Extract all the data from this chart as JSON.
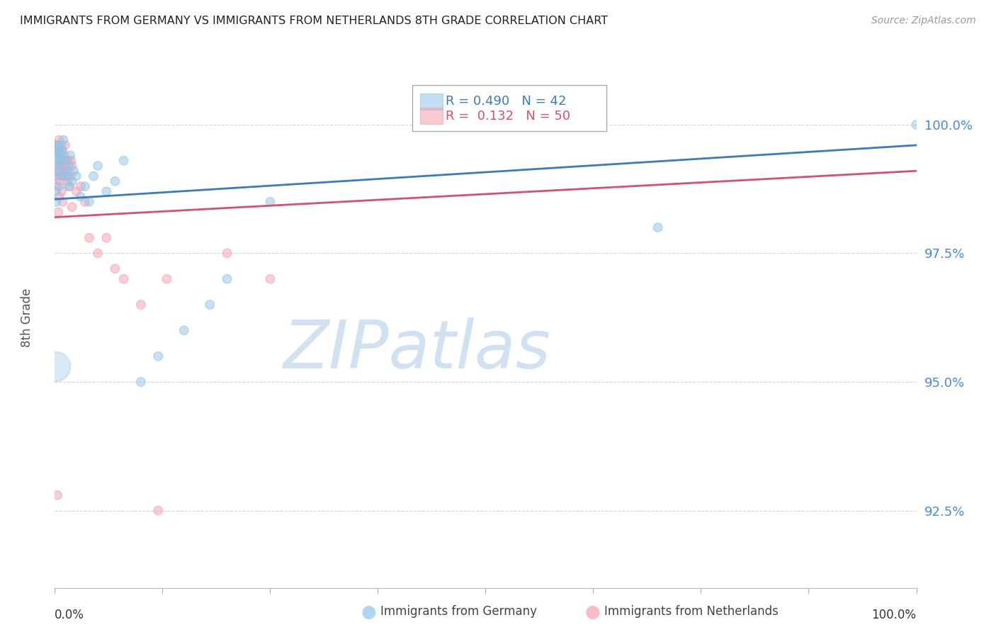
{
  "title": "IMMIGRANTS FROM GERMANY VS IMMIGRANTS FROM NETHERLANDS 8TH GRADE CORRELATION CHART",
  "source": "Source: ZipAtlas.com",
  "ylabel": "8th Grade",
  "legend_germany": "Immigrants from Germany",
  "legend_netherlands": "Immigrants from Netherlands",
  "R_germany": 0.49,
  "N_germany": 42,
  "R_netherlands": 0.132,
  "N_netherlands": 50,
  "germany_color": "#90c4e8",
  "netherlands_color": "#f4a0b0",
  "trendline_germany_color": "#3a7bbf",
  "trendline_netherlands_color": "#d85070",
  "germany_scatter_x": [
    0.2,
    0.3,
    0.3,
    0.4,
    0.5,
    0.6,
    0.7,
    0.8,
    0.9,
    1.0,
    1.1,
    1.2,
    1.3,
    1.5,
    1.6,
    1.7,
    1.8,
    2.0,
    2.2,
    2.5,
    3.0,
    3.5,
    4.0,
    4.5,
    5.0,
    6.0,
    7.0,
    8.0,
    10.0,
    12.0,
    15.0,
    18.0,
    20.0,
    25.0,
    70.0,
    100.0,
    0.1,
    0.2,
    0.3,
    0.4,
    0.5,
    0.6
  ],
  "germany_scatter_y": [
    99.5,
    99.6,
    99.2,
    99.4,
    99.5,
    99.3,
    99.6,
    99.4,
    99.5,
    99.7,
    99.0,
    99.1,
    99.3,
    99.0,
    98.8,
    99.2,
    99.4,
    98.9,
    99.1,
    99.0,
    98.6,
    98.8,
    98.5,
    99.0,
    99.2,
    98.7,
    98.9,
    99.3,
    95.0,
    95.5,
    96.0,
    96.5,
    97.0,
    98.5,
    98.0,
    100.0,
    98.7,
    98.5,
    99.0,
    99.1,
    98.8,
    99.3
  ],
  "germany_scatter_size": [
    80,
    80,
    80,
    80,
    80,
    80,
    80,
    80,
    80,
    80,
    80,
    80,
    80,
    80,
    80,
    80,
    80,
    80,
    80,
    80,
    80,
    80,
    80,
    80,
    80,
    80,
    80,
    80,
    80,
    80,
    80,
    80,
    80,
    80,
    80,
    80,
    80,
    80,
    80,
    80,
    80,
    80
  ],
  "netherlands_scatter_x": [
    0.1,
    0.2,
    0.2,
    0.3,
    0.3,
    0.4,
    0.5,
    0.5,
    0.6,
    0.7,
    0.7,
    0.8,
    0.9,
    1.0,
    1.1,
    1.2,
    1.3,
    1.4,
    1.5,
    1.6,
    1.7,
    1.8,
    1.9,
    2.0,
    2.5,
    3.0,
    3.5,
    4.0,
    5.0,
    6.0,
    7.0,
    8.0,
    10.0,
    13.0,
    20.0,
    25.0,
    0.1,
    0.2,
    0.3,
    0.5,
    0.6,
    0.7,
    0.8,
    0.9,
    1.0,
    1.5,
    2.0,
    12.0,
    0.3,
    0.4
  ],
  "netherlands_scatter_y": [
    99.5,
    99.6,
    99.4,
    99.3,
    99.5,
    99.6,
    99.2,
    99.7,
    99.4,
    99.0,
    99.2,
    99.5,
    99.1,
    99.3,
    99.4,
    99.6,
    99.2,
    99.0,
    98.9,
    99.1,
    98.8,
    99.0,
    99.3,
    99.2,
    98.7,
    98.8,
    98.5,
    97.8,
    97.5,
    97.8,
    97.2,
    97.0,
    96.5,
    97.0,
    97.5,
    97.0,
    99.0,
    98.8,
    99.1,
    98.6,
    98.9,
    99.2,
    98.7,
    98.5,
    99.0,
    99.3,
    98.4,
    92.5,
    92.8,
    98.3
  ],
  "netherlands_scatter_size": [
    80,
    80,
    80,
    80,
    80,
    80,
    80,
    80,
    80,
    80,
    80,
    80,
    80,
    80,
    80,
    80,
    80,
    80,
    80,
    80,
    80,
    80,
    80,
    80,
    80,
    80,
    80,
    80,
    80,
    80,
    80,
    80,
    80,
    80,
    80,
    80,
    80,
    80,
    80,
    80,
    80,
    80,
    80,
    80,
    80,
    80,
    80,
    80,
    80,
    80
  ],
  "large_germany_x": 0.05,
  "large_germany_y": 95.3,
  "large_germany_size": 900,
  "xlim": [
    0.0,
    100.0
  ],
  "ylim": [
    91.0,
    101.5
  ],
  "right_yticks": [
    92.5,
    95.0,
    97.5,
    100.0
  ],
  "right_ytick_labels": [
    "92.5%",
    "95.0%",
    "97.5%",
    "100.0%"
  ],
  "trendline_germany_x0": 0.0,
  "trendline_germany_y0": 98.55,
  "trendline_germany_x1": 100.0,
  "trendline_germany_y1": 99.6,
  "trendline_netherlands_x0": 0.0,
  "trendline_netherlands_y0": 98.2,
  "trendline_netherlands_x1": 100.0,
  "trendline_netherlands_y1": 99.1,
  "background_color": "#ffffff",
  "grid_color": "#cccccc",
  "watermark": "ZIPatlas",
  "watermark_zip_color": "#c8dcf0",
  "watermark_atlas_color": "#a0b8d0"
}
